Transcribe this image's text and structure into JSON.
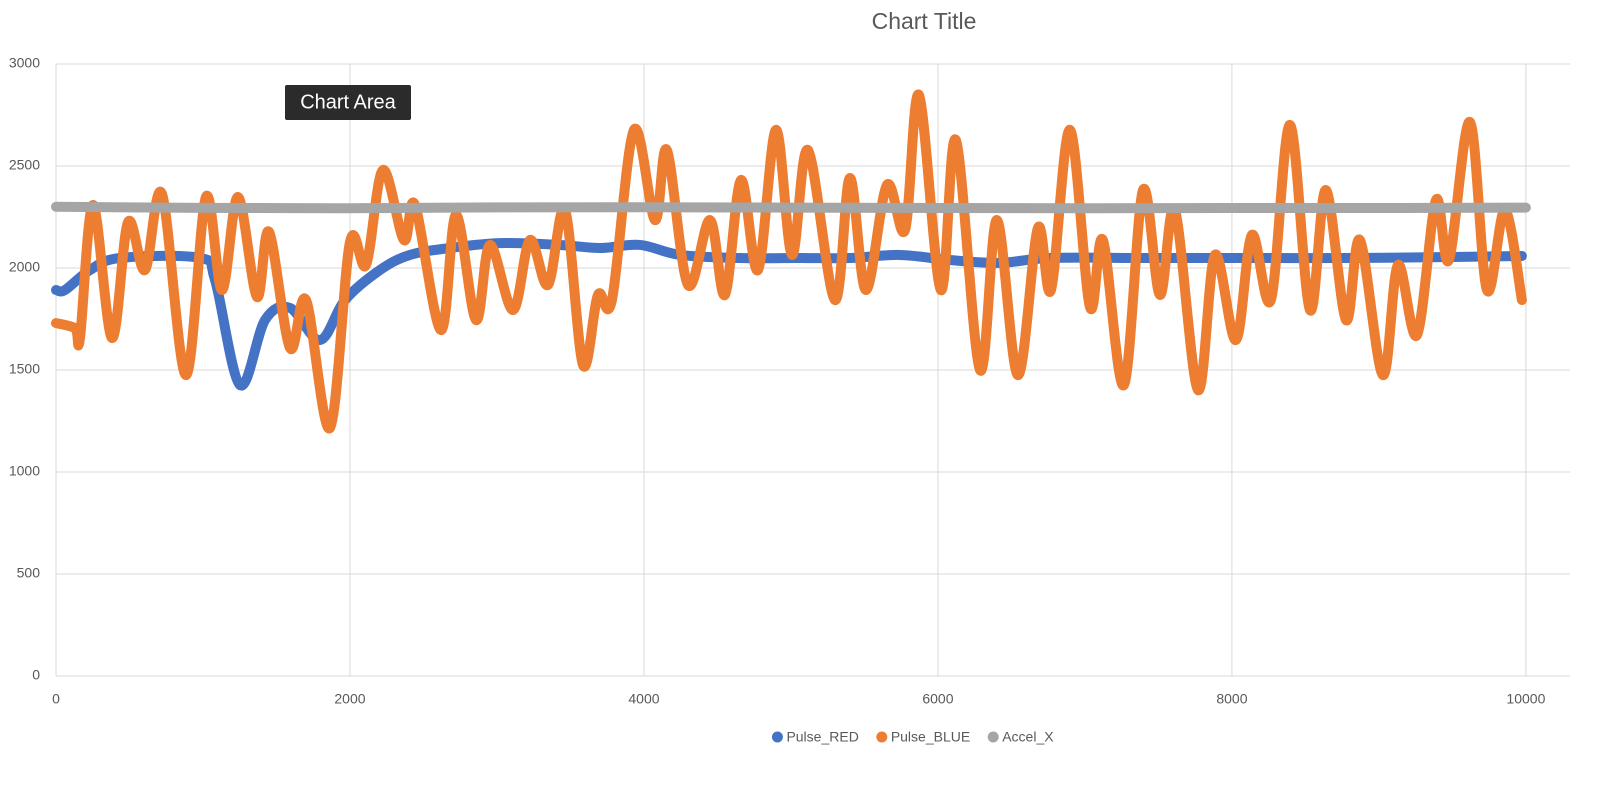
{
  "chart_data": {
    "type": "line",
    "title": "Chart Title",
    "xlim": [
      0,
      10300
    ],
    "xticks": [
      0,
      2000,
      4000,
      6000,
      8000,
      10000
    ],
    "ylim": [
      0,
      3000
    ],
    "yticks": [
      0,
      500,
      1000,
      1500,
      2000,
      2500,
      3000
    ],
    "grid": true,
    "smooth": true,
    "legend": "bottom",
    "series": [
      {
        "name": "Pulse_RED",
        "color": "#4472c4",
        "x": [
          0,
          61,
          231,
          435,
          980,
          1082,
          1252,
          1422,
          1592,
          1796,
          1966,
          2204,
          2408,
          2680,
          3020,
          3429,
          3701,
          3973,
          4245,
          4653,
          5061,
          5401,
          5741,
          6082,
          6422,
          6762,
          7442,
          8122,
          8803,
          9483,
          9973
        ],
        "values": [
          1892,
          1892,
          1990,
          2049,
          2049,
          1941,
          1426,
          1745,
          1804,
          1647,
          1843,
          1990,
          2064,
          2098,
          2122,
          2113,
          2098,
          2113,
          2064,
          2049,
          2049,
          2049,
          2064,
          2039,
          2025,
          2049,
          2049,
          2049,
          2049,
          2054,
          2059
        ]
      },
      {
        "name": "Pulse_BLUE",
        "color": "#ed7d31",
        "x": [
          0,
          130,
          163,
          252,
          381,
          490,
          605,
          721,
          884,
          1020,
          1129,
          1238,
          1367,
          1449,
          1592,
          1701,
          1864,
          2000,
          2109,
          2224,
          2367,
          2442,
          2619,
          2721,
          2857,
          2952,
          3109,
          3224,
          3347,
          3463,
          3585,
          3687,
          3782,
          3932,
          4075,
          4156,
          4299,
          4449,
          4551,
          4660,
          4776,
          4898,
          5007,
          5116,
          5299,
          5401,
          5510,
          5653,
          5776,
          5871,
          6020,
          6122,
          6286,
          6401,
          6544,
          6680,
          6769,
          6898,
          7034,
          7122,
          7265,
          7395,
          7510,
          7612,
          7769,
          7884,
          8027,
          8136,
          8265,
          8395,
          8531,
          8639,
          8776,
          8871,
          9027,
          9129,
          9259,
          9388,
          9476,
          9619,
          9735,
          9857,
          9973
        ],
        "values": [
          1730,
          1705,
          1657,
          2309,
          1657,
          2225,
          1990,
          2363,
          1475,
          2348,
          1892,
          2348,
          1858,
          2177,
          1608,
          1843,
          1216,
          2127,
          2015,
          2480,
          2137,
          2309,
          1696,
          2260,
          1745,
          2113,
          1794,
          2137,
          1917,
          2284,
          1525,
          1868,
          1843,
          2677,
          2235,
          2578,
          1917,
          2235,
          1868,
          2431,
          1990,
          2677,
          2064,
          2578,
          1843,
          2441,
          1892,
          2407,
          2186,
          2848,
          1892,
          2627,
          1500,
          2235,
          1475,
          2196,
          1892,
          2677,
          1809,
          2137,
          1426,
          2382,
          1868,
          2284,
          1402,
          2064,
          1647,
          2162,
          1843,
          2701,
          1794,
          2382,
          1745,
          2137,
          1475,
          2015,
          1671,
          2333,
          2039,
          2716,
          1892,
          2284,
          1843
        ]
      },
      {
        "name": "Accel_X",
        "color": "#a5a5a5",
        "x": [
          0,
          1000,
          2000,
          3000,
          4000,
          5000,
          6000,
          7000,
          8000,
          9000,
          10000
        ],
        "values": [
          2300,
          2295,
          2293,
          2297,
          2298,
          2296,
          2294,
          2293,
          2294,
          2294,
          2296
        ]
      }
    ]
  },
  "tooltip": "Chart Area"
}
